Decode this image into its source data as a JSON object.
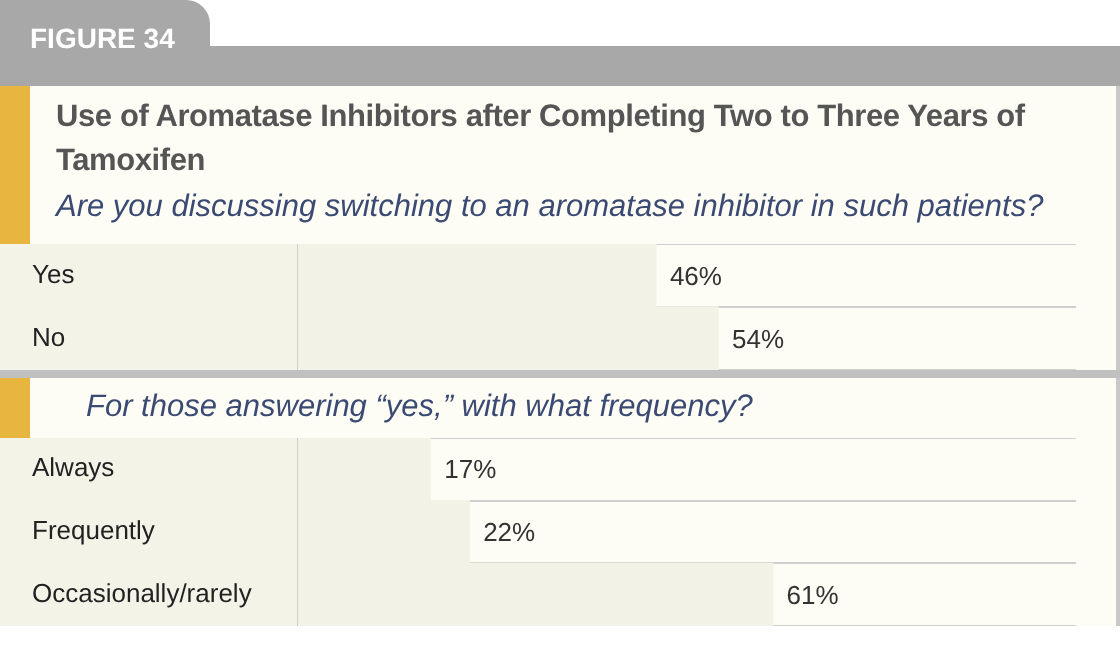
{
  "chart_data": [
    {
      "type": "bar",
      "orientation": "horizontal",
      "title": "Use of Aromatase Inhibitors after Completing Two to Three Years of Tamoxifen",
      "subtitle": "Are you discussing switching to an aromatase inhibitor in such patients?",
      "annotations": [
        "FIGURE 34"
      ],
      "categories": [
        "Yes",
        "No"
      ],
      "values": [
        46,
        54
      ],
      "value_labels": [
        "46%",
        "54%"
      ],
      "color": "#f3f2e6",
      "xlim": [
        0,
        100
      ],
      "tick_labels": "y",
      "grid": "y"
    },
    {
      "type": "bar",
      "orientation": "horizontal",
      "subtitle": "For those answering “yes,” with what frequency?",
      "categories": [
        "Always",
        "Frequently",
        "Occasionally/rarely"
      ],
      "values": [
        17,
        22,
        61
      ],
      "value_labels": [
        "17%",
        "22%",
        "61%"
      ],
      "color": "#f3f2e6",
      "xlim": [
        0,
        100
      ],
      "tick_labels": "y",
      "grid": "y"
    }
  ]
}
